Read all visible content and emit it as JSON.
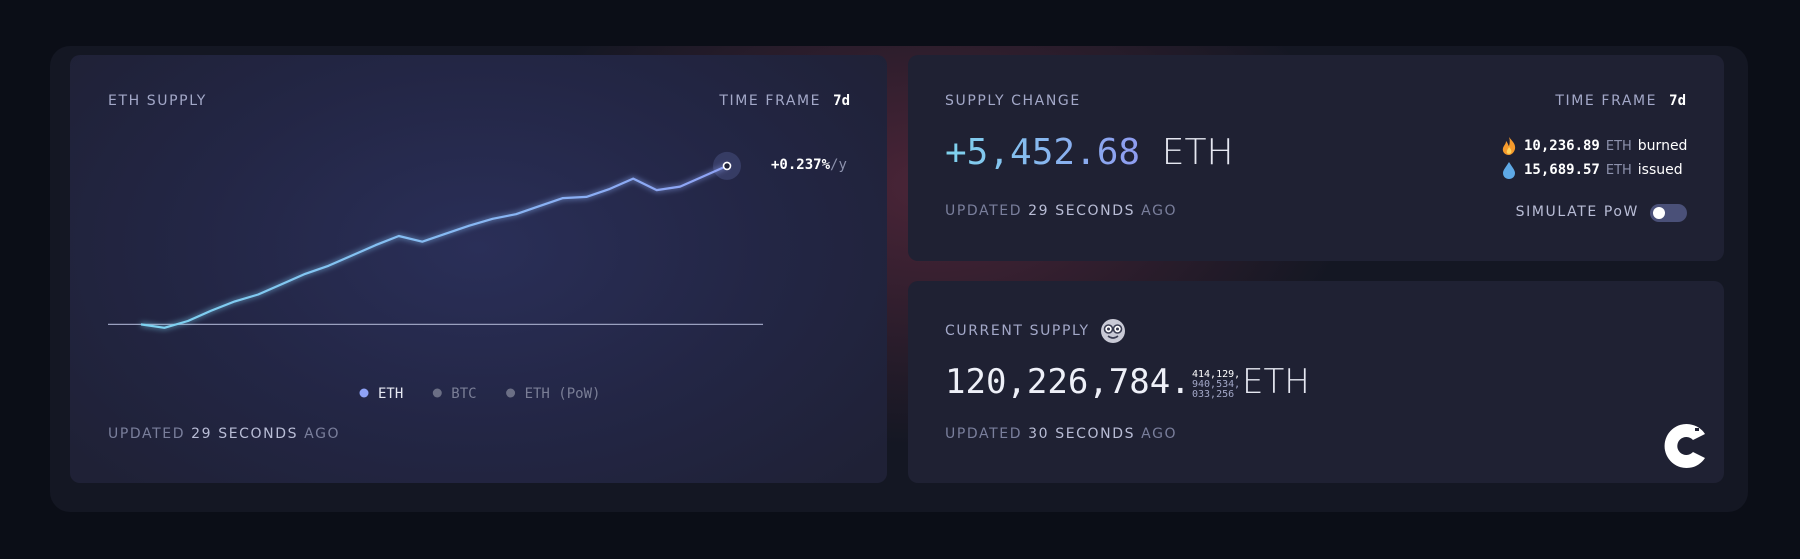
{
  "eth_supply_card": {
    "title": "ETH SUPPLY",
    "time_frame_label": "TIME FRAME",
    "time_frame": "7d",
    "updated": {
      "prefix": "UPDATED",
      "time": "29 SECONDS",
      "suffix": "AGO"
    }
  },
  "chart_data": {
    "type": "line",
    "annotation": "+0.237%",
    "annotation_unit": "/y",
    "ylim": [
      -1500,
      6000
    ],
    "series": [
      {
        "name": "ETH",
        "color": "#8fa2f5",
        "visible": true,
        "values": [
          0,
          -118,
          118,
          474,
          790,
          1027,
          1383,
          1738,
          2015,
          2370,
          2726,
          3042,
          2844,
          3121,
          3397,
          3634,
          3792,
          4069,
          4345,
          4385,
          4661,
          5016,
          4622,
          4740,
          5096,
          5452.68
        ]
      },
      {
        "name": "BTC",
        "color": "#6b6f85",
        "visible": false
      },
      {
        "name": "ETH (PoW)",
        "color": "#6b6f85",
        "visible": false
      }
    ]
  },
  "supply_change_card": {
    "title": "SUPPLY CHANGE",
    "time_frame_label": "TIME FRAME",
    "time_frame": "7d",
    "change": "+5,452.68",
    "unit": "ETH",
    "burned": {
      "amount": "10,236.89",
      "unit": "ETH",
      "label": "burned"
    },
    "issued": {
      "amount": "15,689.57",
      "unit": "ETH",
      "label": "issued"
    },
    "updated": {
      "prefix": "UPDATED",
      "time": "29 SECONDS",
      "suffix": "AGO"
    },
    "simulate_label": "SIMULATE PoW"
  },
  "current_supply_card": {
    "title": "CURRENT SUPPLY",
    "supply": "120,226,784.",
    "fraction_lines": [
      "414,129,",
      "940,534,",
      "033,256"
    ],
    "unit": "ETH",
    "updated": {
      "prefix": "UPDATED",
      "time": "30 SECONDS",
      "suffix": "AGO"
    }
  }
}
